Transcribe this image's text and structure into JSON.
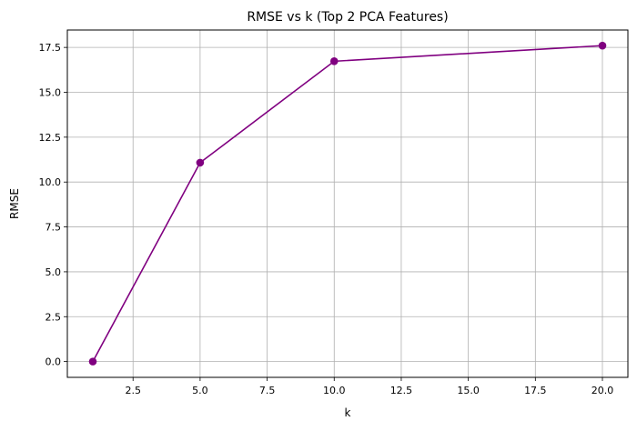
{
  "chart_data": {
    "type": "line",
    "title": "RMSE vs k (Top 2 PCA Features)",
    "xlabel": "k",
    "ylabel": "RMSE",
    "xlim": [
      0.05,
      20.95
    ],
    "ylim": [
      -0.88,
      18.47
    ],
    "x_ticks": [
      2.5,
      5.0,
      7.5,
      10.0,
      12.5,
      15.0,
      17.5,
      20.0
    ],
    "x_tick_labels": [
      "2.5",
      "5.0",
      "7.5",
      "10.0",
      "12.5",
      "15.0",
      "17.5",
      "20.0"
    ],
    "y_ticks": [
      0.0,
      2.5,
      5.0,
      7.5,
      10.0,
      12.5,
      15.0,
      17.5
    ],
    "y_tick_labels": [
      "0.0",
      "2.5",
      "5.0",
      "7.5",
      "10.0",
      "12.5",
      "15.0",
      "17.5"
    ],
    "grid": true,
    "series": [
      {
        "color": "#800080",
        "marker": "circle",
        "x": [
          1,
          5,
          10,
          20
        ],
        "y": [
          0.0,
          11.08,
          16.73,
          17.6
        ]
      }
    ]
  }
}
